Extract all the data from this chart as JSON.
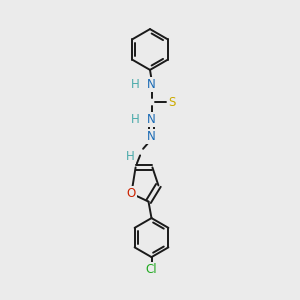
{
  "bg_color": "#ebebeb",
  "bond_color": "#1a1a1a",
  "bond_width": 1.4,
  "atom_colors": {
    "N": "#1a6bb5",
    "H": "#4aabab",
    "S": "#ccaa00",
    "O": "#cc2200",
    "Cl": "#22aa22",
    "C": "#1a1a1a"
  },
  "font_size": 8.5,
  "font_size_small": 7.5
}
